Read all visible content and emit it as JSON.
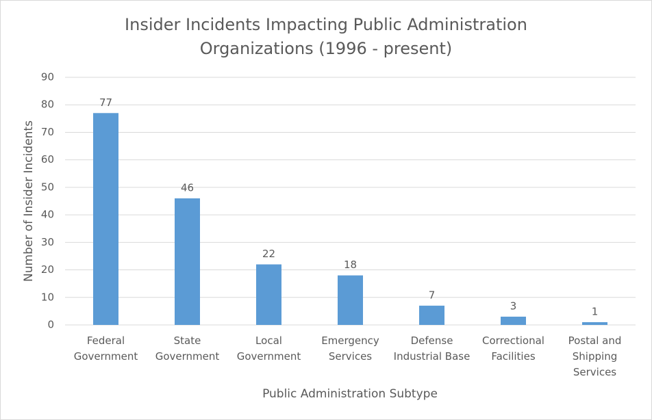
{
  "chart_data": {
    "type": "bar",
    "title": [
      "Insider Incidents Impacting Public Administration",
      "Organizations (1996 - present)"
    ],
    "x_label": "Public Administration Subtype",
    "y_label": "Number of Insider Incidents",
    "categories": [
      "Federal Government",
      "State Government",
      "Local Government",
      "Emergency Services",
      "Defense Industrial Base",
      "Correctional Facilities",
      "Postal and Shipping Services"
    ],
    "values": [
      77,
      46,
      22,
      18,
      7,
      3,
      1
    ],
    "color": "#5b9bd5",
    "ylim": [
      0,
      90
    ],
    "yticks": [
      0,
      10,
      20,
      30,
      40,
      50,
      60,
      70,
      80,
      90
    ],
    "grid": true
  }
}
